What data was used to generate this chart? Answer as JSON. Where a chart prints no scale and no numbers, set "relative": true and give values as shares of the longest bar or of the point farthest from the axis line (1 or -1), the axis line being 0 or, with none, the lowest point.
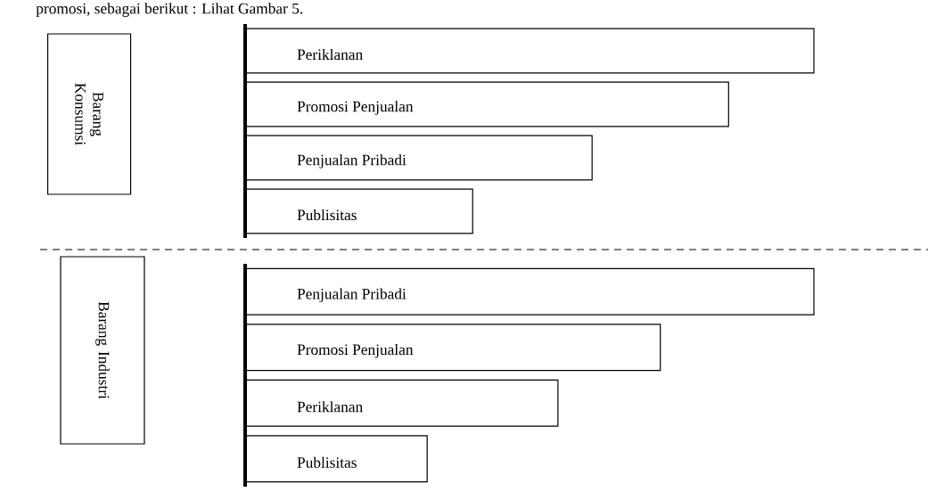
{
  "chart_data": [
    {
      "type": "bar",
      "orientation": "horizontal",
      "relative": true,
      "ylabel": "Barang Konsumsi",
      "annotations": [
        "promosi, sebagai berikut : Lihat Gambar 5."
      ],
      "color": "#ffffff",
      "categories": [
        "Periklanan",
        "Promosi Penjualan",
        "Penjualan Pribadi",
        "Publisitas"
      ],
      "values": [
        1,
        0.85,
        0.61,
        0.4
      ]
    },
    {
      "type": "bar",
      "orientation": "horizontal",
      "relative": true,
      "ylabel": "Barang Industri",
      "color": "#ffffff",
      "categories": [
        "Penjualan Pribadi",
        "Promosi Penjualan",
        "Periklanan",
        "Publisitas"
      ],
      "values": [
        1,
        0.73,
        0.55,
        0.32
      ]
    }
  ]
}
